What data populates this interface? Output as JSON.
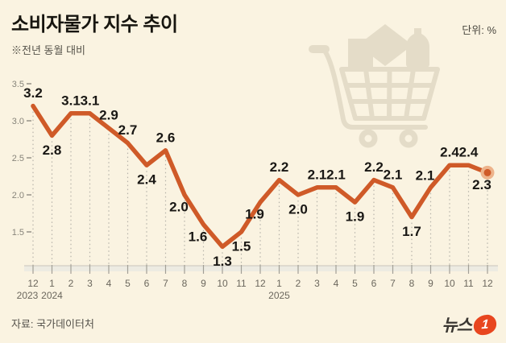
{
  "header": {
    "title": "소비자물가 지수 추이",
    "subtitle": "※전년 동월 대비",
    "unit_label": "단위: %"
  },
  "footer": {
    "source": "자료: 국가데이터처",
    "logo_text": "뉴스",
    "logo_number": "1"
  },
  "icons": {
    "background_icon": "shopping-cart-icon",
    "logo_mark": "news1-logo-badge"
  },
  "colors": {
    "background": "#faf3e1",
    "line": "#cf5a28",
    "line_end_halo": "#edb38b",
    "data_label": "#191714",
    "axis_text": "#6b675d",
    "ytick_text": "#87847a",
    "dropline": "#b6b3a9",
    "axis_band_fill": "#edebe2",
    "axis_band_edge": "#c9c6bc",
    "axis_tick": "#a29f96",
    "cart_icon": "#e4dcc8",
    "logo_red": "#e8461f"
  },
  "chart_data": {
    "type": "line",
    "title": "소비자물가 지수 추이",
    "subtitle_note": "전년 동월 대비",
    "unit": "%",
    "categories": [
      "12",
      "1",
      "2",
      "3",
      "4",
      "5",
      "6",
      "7",
      "8",
      "9",
      "10",
      "11",
      "12",
      "1",
      "2",
      "3",
      "4",
      "5",
      "6",
      "7",
      "8",
      "9",
      "10",
      "11",
      "12"
    ],
    "year_labels": [
      {
        "month_index": 0,
        "label": "2023",
        "dx": -7
      },
      {
        "month_index": 1,
        "label": "2024",
        "dx": 0
      },
      {
        "month_index": 13,
        "label": "2025",
        "dx": 0
      }
    ],
    "values": [
      3.2,
      2.8,
      3.1,
      3.1,
      2.9,
      2.7,
      2.4,
      2.6,
      2.0,
      1.6,
      1.3,
      1.5,
      1.9,
      2.2,
      2.0,
      2.1,
      2.1,
      1.9,
      2.2,
      2.1,
      1.7,
      2.1,
      2.4,
      2.4,
      2.3
    ],
    "label_placement": [
      "above",
      "below",
      "above",
      "above",
      "above",
      "above",
      "below",
      "above",
      "below-left",
      "below-left",
      "below",
      "below",
      "below-left",
      "above",
      "below",
      "above",
      "above",
      "below",
      "above",
      "above",
      "below",
      "above-left",
      "above",
      "above",
      "below-left"
    ],
    "yticks": [
      "3.5",
      "3.0",
      "2.5",
      "2.0",
      "1.5"
    ],
    "ylim": [
      1.0,
      3.6
    ],
    "xlabel": "",
    "ylabel": "",
    "legend": "none",
    "grid": "vertical-droplines-dotted",
    "last_point_marker": true
  }
}
